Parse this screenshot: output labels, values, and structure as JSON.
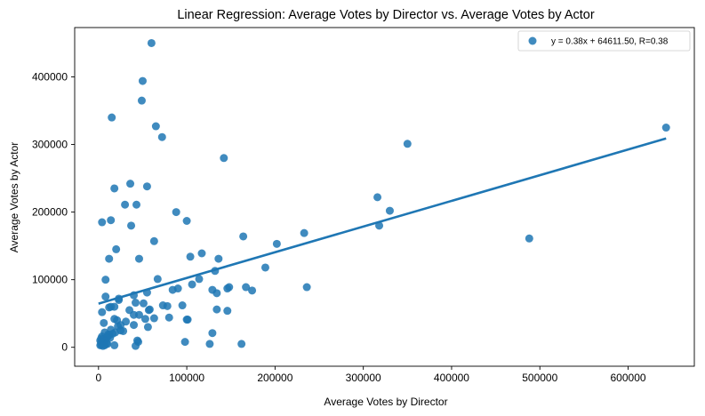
{
  "chart_data": {
    "type": "scatter",
    "title": "Linear Regression: Average Votes by Director vs. Average Votes by Actor",
    "xlabel": "Average Votes by Director",
    "ylabel": "Average Votes by Actor",
    "xlim": [
      -27000,
      675000
    ],
    "ylim": [
      -28000,
      473000
    ],
    "xticks": [
      0,
      100000,
      200000,
      300000,
      400000,
      500000,
      600000
    ],
    "xtick_labels": [
      "0",
      "100000",
      "200000",
      "300000",
      "400000",
      "500000",
      "600000"
    ],
    "yticks": [
      0,
      100000,
      200000,
      300000,
      400000
    ],
    "ytick_labels": [
      "0",
      "100000",
      "200000",
      "300000",
      "400000"
    ],
    "grid": false,
    "legend": {
      "position": "top-right",
      "entries": [
        "y = 0.38x + 64611.50, R=0.38"
      ]
    },
    "colors": {
      "points": "#1f77b4",
      "line": "#1f77b4"
    },
    "regression": {
      "slope": 0.38,
      "intercept": 64611.5,
      "x_range": [
        0,
        643000
      ]
    },
    "series": [
      {
        "x": [
          60000,
          50000,
          49000,
          15000,
          65000,
          72000,
          142000,
          350000,
          643000,
          36000,
          55000,
          18000,
          316000,
          330000,
          318000,
          30000,
          43000,
          88000,
          100000,
          4000,
          14000,
          37000,
          20000,
          164000,
          233000,
          202000,
          63000,
          117000,
          104000,
          136000,
          12000,
          46000,
          189000,
          488000,
          132000,
          114000,
          90000,
          67000,
          8000,
          148000,
          167000,
          174000,
          146000,
          236000,
          55000,
          8000,
          23000,
          18000,
          84000,
          129000,
          134000,
          40000,
          106000,
          14000,
          12000,
          42000,
          51000,
          57000,
          95000,
          73000,
          78000,
          58000,
          134000,
          146000,
          35000,
          63000,
          23000,
          80000,
          18000,
          46000,
          31000,
          53000,
          101000,
          100000,
          6000,
          25000,
          40000,
          56000,
          22000,
          25000,
          28000,
          14000,
          4000,
          12000,
          16000,
          19000,
          11000,
          13000,
          9000,
          5000,
          2000,
          7000,
          3000,
          6000,
          9000,
          2000,
          7000,
          10000,
          5000,
          3000,
          18000,
          21000,
          40000,
          45000,
          98000,
          129000,
          126000,
          44000,
          42000,
          162000,
          4000,
          7000,
          10000,
          3000
        ],
        "y": [
          450000,
          394000,
          365000,
          340000,
          327000,
          311000,
          280000,
          301000,
          325000,
          242000,
          238000,
          235000,
          222000,
          202000,
          180000,
          211000,
          211000,
          200000,
          187000,
          185000,
          188000,
          180000,
          145000,
          164000,
          169000,
          153000,
          157000,
          139000,
          134000,
          131000,
          131000,
          131000,
          118000,
          161000,
          113000,
          101000,
          87000,
          101000,
          100000,
          89000,
          89000,
          84000,
          87000,
          89000,
          81000,
          75000,
          72000,
          60000,
          85000,
          85000,
          80000,
          77000,
          93000,
          60000,
          59000,
          66000,
          65000,
          55000,
          62000,
          62000,
          61000,
          56000,
          56000,
          54000,
          55000,
          43000,
          70000,
          44000,
          42000,
          48000,
          38000,
          42000,
          41000,
          41000,
          36000,
          33000,
          33000,
          30000,
          31000,
          25000,
          24000,
          26000,
          16000,
          18000,
          20000,
          22000,
          19000,
          14000,
          14000,
          12000,
          10000,
          9000,
          8000,
          6000,
          6000,
          3000,
          3000,
          5000,
          2000,
          4000,
          3000,
          40000,
          48000,
          8000,
          8000,
          21000,
          5000,
          10000,
          2000,
          5000,
          52000,
          22000,
          15000,
          13000
        ]
      }
    ]
  }
}
